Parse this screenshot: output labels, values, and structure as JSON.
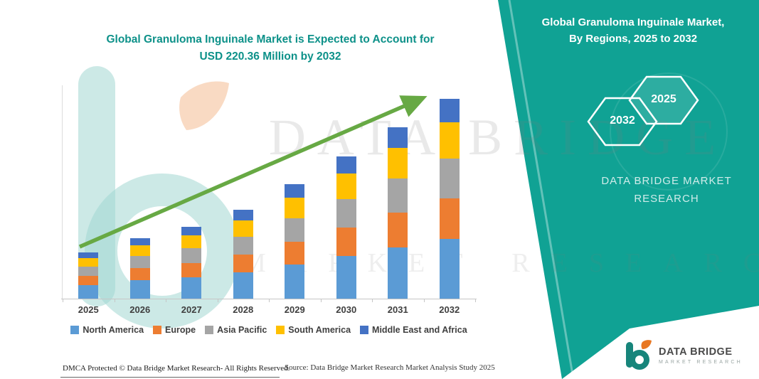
{
  "title": {
    "line1": "Global Granuloma Inguinale Market is Expected to Account for",
    "line2": "USD 220.36 Million by 2032"
  },
  "panel": {
    "bg_color": "#10A294",
    "heading_line1": "Global Granuloma Inguinale Market,",
    "heading_line2": "By Regions, 2025 to 2032",
    "hexagons": [
      "2032",
      "2025"
    ],
    "brand_line1": "DATA BRIDGE MARKET",
    "brand_line2": "RESEARCH"
  },
  "watermark": {
    "line1": "DATA BRIDGE",
    "line2": "MARKET RESEARCH"
  },
  "footer": {
    "dmca": "DMCA Protected © Data Bridge Market Research-  All Rights Reserved.",
    "source": "Source: Data Bridge Market Research  Market Analysis Study 2025"
  },
  "logo": {
    "title": "DATA BRIDGE",
    "subtitle": "MARKET RESEARCH"
  },
  "chart_data": {
    "type": "bar",
    "stacked": true,
    "title": "Global Granuloma Inguinale Market is Expected to Account for USD 220.36 Million by 2032",
    "unit": "USD Million",
    "categories": [
      "2025",
      "2026",
      "2027",
      "2028",
      "2029",
      "2030",
      "2031",
      "2032"
    ],
    "series": [
      {
        "name": "North America",
        "color": "#5B9BD5",
        "values": [
          15.3,
          20.1,
          23.7,
          29.4,
          37.8,
          47.1,
          56.7,
          66.1
        ]
      },
      {
        "name": "Europe",
        "color": "#ED7D31",
        "values": [
          10.2,
          13.4,
          15.8,
          19.6,
          25.2,
          31.4,
          37.8,
          44.1
        ]
      },
      {
        "name": "Asia Pacific",
        "color": "#A5A5A5",
        "values": [
          10.2,
          13.4,
          15.8,
          19.6,
          25.2,
          31.4,
          37.8,
          44.1
        ]
      },
      {
        "name": "South America",
        "color": "#FFC000",
        "values": [
          9.2,
          12.1,
          14.2,
          17.6,
          22.7,
          28.3,
          34.0,
          39.7
        ]
      },
      {
        "name": "Middle East and Africa",
        "color": "#4472C4",
        "values": [
          6.1,
          8.0,
          9.5,
          11.8,
          15.1,
          18.8,
          22.7,
          26.4
        ]
      }
    ],
    "totals": [
      51.0,
      67.0,
      79.0,
      98.0,
      126.0,
      157.0,
      189.0,
      220.36
    ],
    "ylim": [
      0,
      235
    ],
    "grid": false,
    "legend_position": "bottom",
    "trend_arrow": true,
    "trend_arrow_color": "#67A944"
  }
}
